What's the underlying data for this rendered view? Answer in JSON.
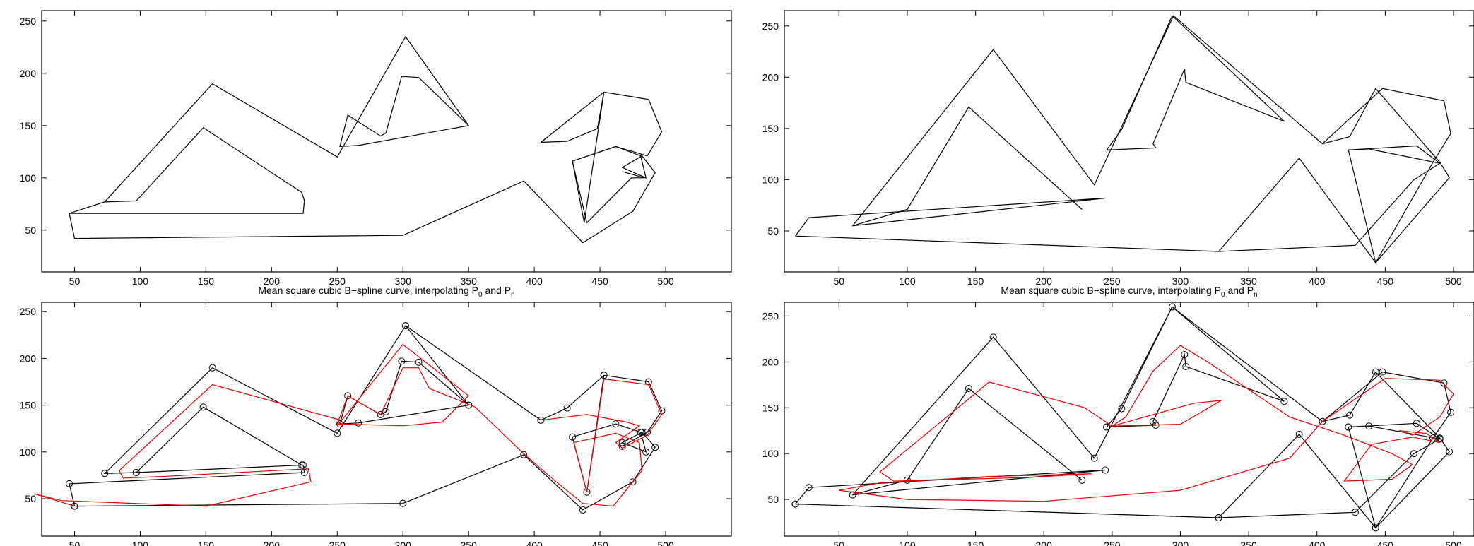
{
  "colors": {
    "polygon": "#000000",
    "curve": "#e60000",
    "background": "#ffffff"
  },
  "chart_data": [
    {
      "type": "line",
      "panel": "top-left",
      "title": "",
      "xlabel": "",
      "ylabel": "",
      "xlim": [
        25,
        550
      ],
      "ylim": [
        10,
        260
      ],
      "xticks": [
        50,
        100,
        150,
        200,
        250,
        300,
        350,
        400,
        450,
        500
      ],
      "yticks": [
        50,
        100,
        150,
        200,
        250
      ],
      "grid": false,
      "show_markers": false,
      "series": [
        {
          "role": "control-polygon",
          "x": [
            50,
            46,
            73,
            155,
            250,
            302,
            350,
            266,
            252,
            258,
            283,
            287,
            299,
            312,
            350,
            302,
            250,
            155,
            73,
            97,
            148,
            223,
            225,
            224,
            46,
            50
          ],
          "y": [
            42,
            66,
            77,
            190,
            120,
            235,
            150,
            131,
            130,
            160,
            140,
            143,
            197,
            196,
            150,
            235,
            120,
            190,
            77,
            78,
            148,
            86,
            78,
            66,
            66,
            42
          ]
        },
        {
          "role": "control-polygon",
          "x": [
            50,
            300,
            392,
            437,
            475,
            492,
            482,
            467,
            485,
            481,
            462,
            429,
            438,
            453,
            448,
            425,
            405
          ],
          "y": [
            42,
            45,
            97,
            38,
            68,
            105,
            121,
            110,
            100,
            121,
            130,
            116,
            57,
            182,
            147,
            135,
            134
          ]
        },
        {
          "role": "control-polygon",
          "x": [
            405,
            453,
            487,
            497,
            486,
            462,
            429,
            440,
            474,
            484,
            467
          ],
          "y": [
            134,
            182,
            175,
            144,
            121,
            130,
            116,
            57,
            100,
            100,
            106
          ]
        }
      ]
    },
    {
      "type": "line",
      "panel": "top-right",
      "title": "",
      "xlabel": "",
      "ylabel": "",
      "xlim": [
        10,
        515
      ],
      "ylim": [
        10,
        265
      ],
      "xticks": [
        50,
        100,
        150,
        200,
        250,
        300,
        350,
        400,
        450,
        500
      ],
      "yticks": [
        50,
        100,
        150,
        200,
        250
      ],
      "grid": false,
      "show_markers": false,
      "series": [
        {
          "role": "control-polygon",
          "x": [
            18,
            28,
            245,
            60,
            163,
            237,
            295,
            404,
            448,
            493,
            498,
            485,
            443,
            423,
            473,
            490,
            471,
            428,
            328,
            18
          ],
          "y": [
            45,
            63,
            82,
            55,
            227,
            95,
            260,
            135,
            189,
            177,
            145,
            117,
            19,
            129,
            133,
            116,
            100,
            36,
            30,
            45
          ]
        },
        {
          "role": "control-polygon",
          "x": [
            228,
            145,
            100,
            60
          ],
          "y": [
            71,
            171,
            71,
            55
          ]
        },
        {
          "role": "control-polygon",
          "x": [
            246,
            257,
            294,
            376,
            304,
            303,
            280,
            282,
            246
          ],
          "y": [
            129,
            149,
            260,
            157,
            195,
            208,
            135,
            131,
            129
          ]
        },
        {
          "role": "control-polygon",
          "x": [
            404,
            424,
            443,
            490,
            497,
            443,
            387,
            328
          ],
          "y": [
            135,
            142,
            189,
            117,
            102,
            19,
            121,
            30
          ]
        },
        {
          "role": "control-polygon",
          "x": [
            423,
            438,
            490
          ],
          "y": [
            129,
            130,
            116
          ]
        }
      ]
    },
    {
      "type": "line",
      "panel": "bottom-left",
      "title": "",
      "xlabel": "Mean square cubic B−spline curve, interpolating P",
      "xlabel_sub_first": "0",
      "xlabel_mid": " and P",
      "xlabel_sub_second": "n",
      "ylabel": "",
      "xlim": [
        25,
        550
      ],
      "ylim": [
        10,
        260
      ],
      "xticks": [
        50,
        100,
        150,
        200,
        250,
        300,
        350,
        400,
        450,
        500
      ],
      "yticks": [
        50,
        100,
        150,
        200,
        250
      ],
      "grid": false,
      "show_markers": true,
      "series": [
        {
          "role": "control-polygon",
          "x": [
            50,
            46,
            225,
            224,
            97,
            73,
            155,
            250,
            302,
            350,
            266,
            252,
            258,
            283,
            287,
            299,
            312,
            350
          ],
          "y": [
            42,
            66,
            78,
            86,
            78,
            77,
            190,
            120,
            235,
            150,
            131,
            130,
            160,
            140,
            143,
            197,
            196,
            150
          ]
        },
        {
          "role": "control-polygon",
          "x": [
            97,
            148,
            223
          ],
          "y": [
            78,
            148,
            86
          ]
        },
        {
          "role": "control-polygon",
          "x": [
            50,
            300,
            392,
            437,
            475,
            492,
            482,
            467,
            485,
            481,
            462,
            429,
            440,
            453,
            487,
            497,
            486,
            467
          ],
          "y": [
            42,
            45,
            97,
            38,
            68,
            105,
            121,
            110,
            100,
            121,
            130,
            116,
            57,
            182,
            175,
            144,
            121,
            106
          ]
        },
        {
          "role": "control-polygon",
          "x": [
            302,
            405,
            425,
            453
          ],
          "y": [
            235,
            134,
            147,
            182
          ]
        },
        {
          "role": "curve",
          "x": [
            50,
            20,
            40,
            150,
            230,
            228,
            120,
            87,
            84,
            155,
            250,
            252,
            250,
            300,
            350,
            330,
            300,
            250,
            258,
            283,
            300,
            312,
            320,
            355,
            392,
            415,
            437,
            460,
            482,
            480,
            462,
            430,
            440,
            453,
            487,
            497,
            486,
            467,
            462,
            480,
            470,
            440,
            405
          ],
          "y": [
            42,
            55,
            48,
            42,
            68,
            82,
            74,
            72,
            80,
            172,
            135,
            130,
            128,
            215,
            160,
            132,
            128,
            130,
            160,
            140,
            190,
            190,
            168,
            148,
            98,
            70,
            45,
            42,
            80,
            110,
            120,
            110,
            57,
            178,
            172,
            140,
            118,
            104,
            110,
            128,
            132,
            140,
            134
          ]
        }
      ]
    },
    {
      "type": "line",
      "panel": "bottom-right",
      "title": "",
      "xlabel": "Mean square cubic B−spline curve, interpolating P",
      "xlabel_sub_first": "0",
      "xlabel_mid": " and P",
      "xlabel_sub_second": "n",
      "ylabel": "",
      "xlim": [
        10,
        515
      ],
      "ylim": [
        10,
        265
      ],
      "xticks": [
        50,
        100,
        150,
        200,
        250,
        300,
        350,
        400,
        450,
        500
      ],
      "yticks": [
        50,
        100,
        150,
        200,
        250
      ],
      "grid": false,
      "show_markers": true,
      "series": [
        {
          "role": "control-polygon",
          "x": [
            18,
            28,
            245,
            60,
            163,
            237,
            294,
            404,
            448,
            493,
            498,
            485,
            443,
            423,
            473,
            490,
            471,
            428,
            328,
            18
          ],
          "y": [
            45,
            63,
            82,
            55,
            227,
            95,
            260,
            135,
            189,
            177,
            145,
            117,
            19,
            129,
            133,
            116,
            100,
            36,
            30,
            45
          ]
        },
        {
          "role": "control-polygon",
          "x": [
            228,
            145,
            100,
            60
          ],
          "y": [
            71,
            171,
            71,
            55
          ]
        },
        {
          "role": "control-polygon",
          "x": [
            246,
            257,
            294,
            376,
            304,
            303,
            280,
            282,
            246
          ],
          "y": [
            129,
            149,
            260,
            157,
            195,
            208,
            135,
            131,
            129
          ]
        },
        {
          "role": "control-polygon",
          "x": [
            404,
            424,
            443,
            490,
            497,
            443,
            387,
            328
          ],
          "y": [
            135,
            142,
            189,
            117,
            102,
            19,
            121,
            30
          ]
        },
        {
          "role": "control-polygon",
          "x": [
            423,
            438,
            490
          ],
          "y": [
            129,
            130,
            116
          ]
        },
        {
          "role": "curve",
          "x": [
            50,
            80,
            160,
            235,
            190,
            90,
            80,
            160,
            230,
            250,
            310,
            330,
            300,
            250,
            260,
            280,
            300,
            320,
            380,
            420,
            455,
            470,
            455,
            420,
            440,
            470,
            490,
            480,
            460,
            470,
            490,
            500,
            490,
            450,
            404,
            380,
            300,
            200,
            100,
            50
          ],
          "y": [
            60,
            68,
            75,
            78,
            74,
            70,
            80,
            178,
            150,
            130,
            155,
            158,
            132,
            130,
            140,
            190,
            218,
            200,
            140,
            120,
            100,
            88,
            72,
            70,
            110,
            118,
            112,
            122,
            125,
            120,
            140,
            165,
            180,
            182,
            135,
            95,
            60,
            48,
            50,
            60
          ]
        }
      ]
    }
  ]
}
